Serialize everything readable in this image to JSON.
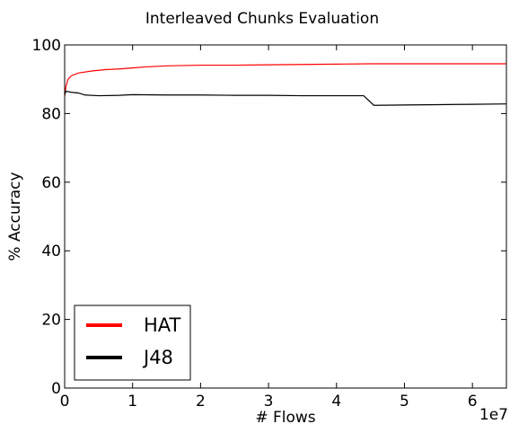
{
  "chart_data": {
    "type": "line",
    "title": "Interleaved Chunks Evaluation",
    "xlabel": "# Flows",
    "ylabel": "% Accuracy",
    "x_offset_label": "1e7",
    "xlim": [
      0,
      6.5
    ],
    "ylim": [
      0,
      100
    ],
    "x_ticks": [
      0,
      1,
      2,
      3,
      4,
      5,
      6
    ],
    "y_ticks": [
      0,
      20,
      40,
      60,
      80,
      100
    ],
    "grid": false,
    "legend_position": "lower-left",
    "series": [
      {
        "name": "HAT",
        "color": "#ff0000",
        "x": [
          0,
          0.02,
          0.05,
          0.1,
          0.2,
          0.4,
          0.6,
          0.8,
          1.0,
          1.2,
          1.5,
          2.0,
          2.5,
          3.0,
          3.5,
          4.0,
          4.5,
          5.0,
          5.5,
          6.0,
          6.5
        ],
        "y": [
          85.0,
          88.0,
          90.0,
          91.0,
          91.8,
          92.4,
          92.8,
          93.0,
          93.3,
          93.6,
          93.9,
          94.1,
          94.1,
          94.2,
          94.3,
          94.4,
          94.5,
          94.5,
          94.5,
          94.5,
          94.5
        ]
      },
      {
        "name": "J48",
        "color": "#000000",
        "x": [
          0,
          0.02,
          0.1,
          0.2,
          0.3,
          0.5,
          0.8,
          1.0,
          1.5,
          2.0,
          2.5,
          3.0,
          3.5,
          4.0,
          4.4,
          4.55,
          5.0,
          5.5,
          6.0,
          6.5
        ],
        "y": [
          85.5,
          86.5,
          86.2,
          86.0,
          85.4,
          85.2,
          85.3,
          85.5,
          85.4,
          85.4,
          85.3,
          85.3,
          85.2,
          85.2,
          85.2,
          82.4,
          82.5,
          82.6,
          82.7,
          82.8
        ]
      }
    ]
  }
}
